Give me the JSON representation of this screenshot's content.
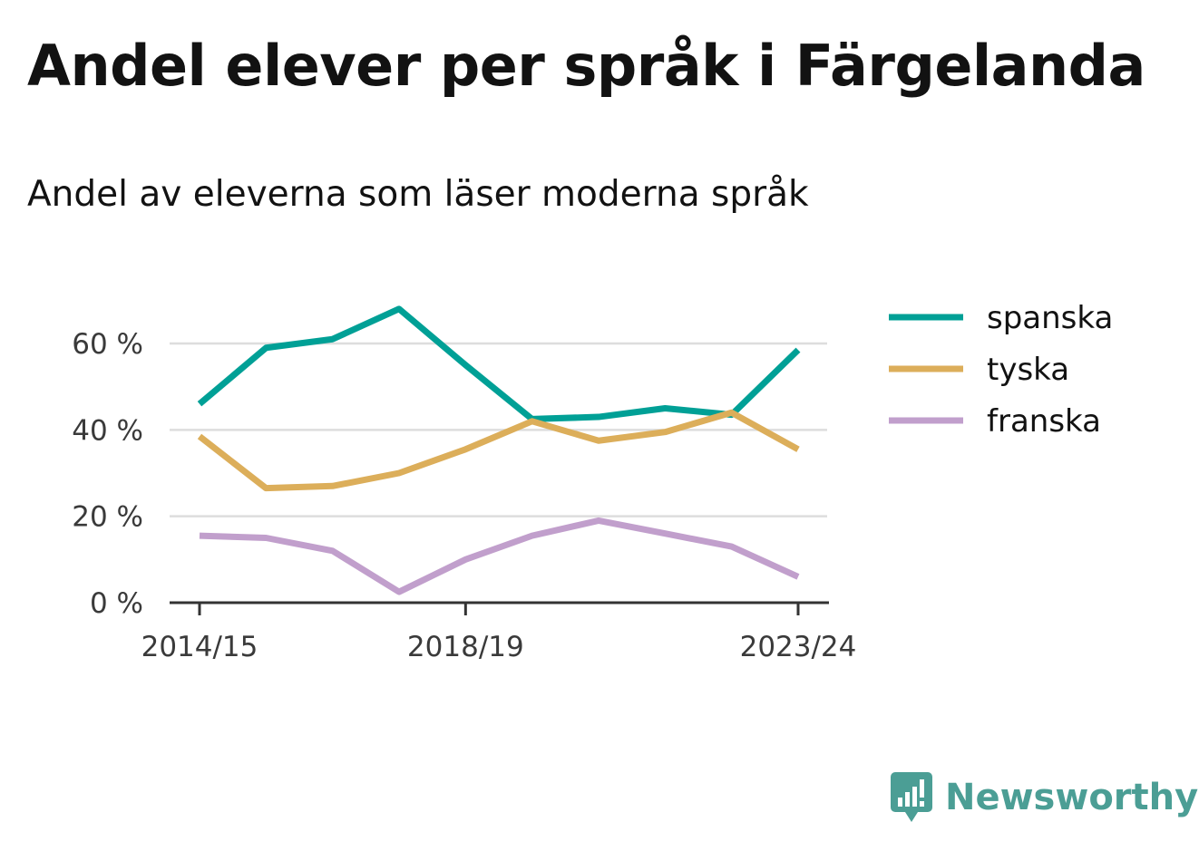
{
  "title": "Andel elever per språk i Färgelanda",
  "subtitle": "Andel av eleverna som läser moderna språk",
  "brand": {
    "name": "Newsworthy",
    "icon": "newsworthy-logo-icon",
    "color": "#4b9e95"
  },
  "chart_data": {
    "type": "line",
    "x": [
      "2014/15",
      "2015/16",
      "2016/17",
      "2017/18",
      "2018/19",
      "2019/20",
      "2020/21",
      "2021/22",
      "2022/23",
      "2023/24"
    ],
    "x_tick_labels": [
      "2014/15",
      "2018/19",
      "2023/24"
    ],
    "y_ticks": [
      0,
      20,
      40,
      60
    ],
    "y_tick_labels": [
      "0 %",
      "20 %",
      "40 %",
      "60 %"
    ],
    "ylim": [
      0,
      70
    ],
    "grid": true,
    "legend_position": "right",
    "series": [
      {
        "name": "spanska",
        "color": "#00a096",
        "values": [
          46,
          59,
          61,
          68,
          55,
          42.5,
          43,
          45,
          43.5,
          58.5
        ]
      },
      {
        "name": "tyska",
        "color": "#dcae5a",
        "values": [
          38.5,
          26.5,
          27,
          30,
          35.5,
          42,
          37.5,
          39.5,
          44,
          35.5
        ]
      },
      {
        "name": "franska",
        "color": "#c19fcc",
        "values": [
          15.5,
          15,
          12,
          2.5,
          10,
          15.5,
          19,
          16,
          13,
          6
        ]
      }
    ]
  }
}
